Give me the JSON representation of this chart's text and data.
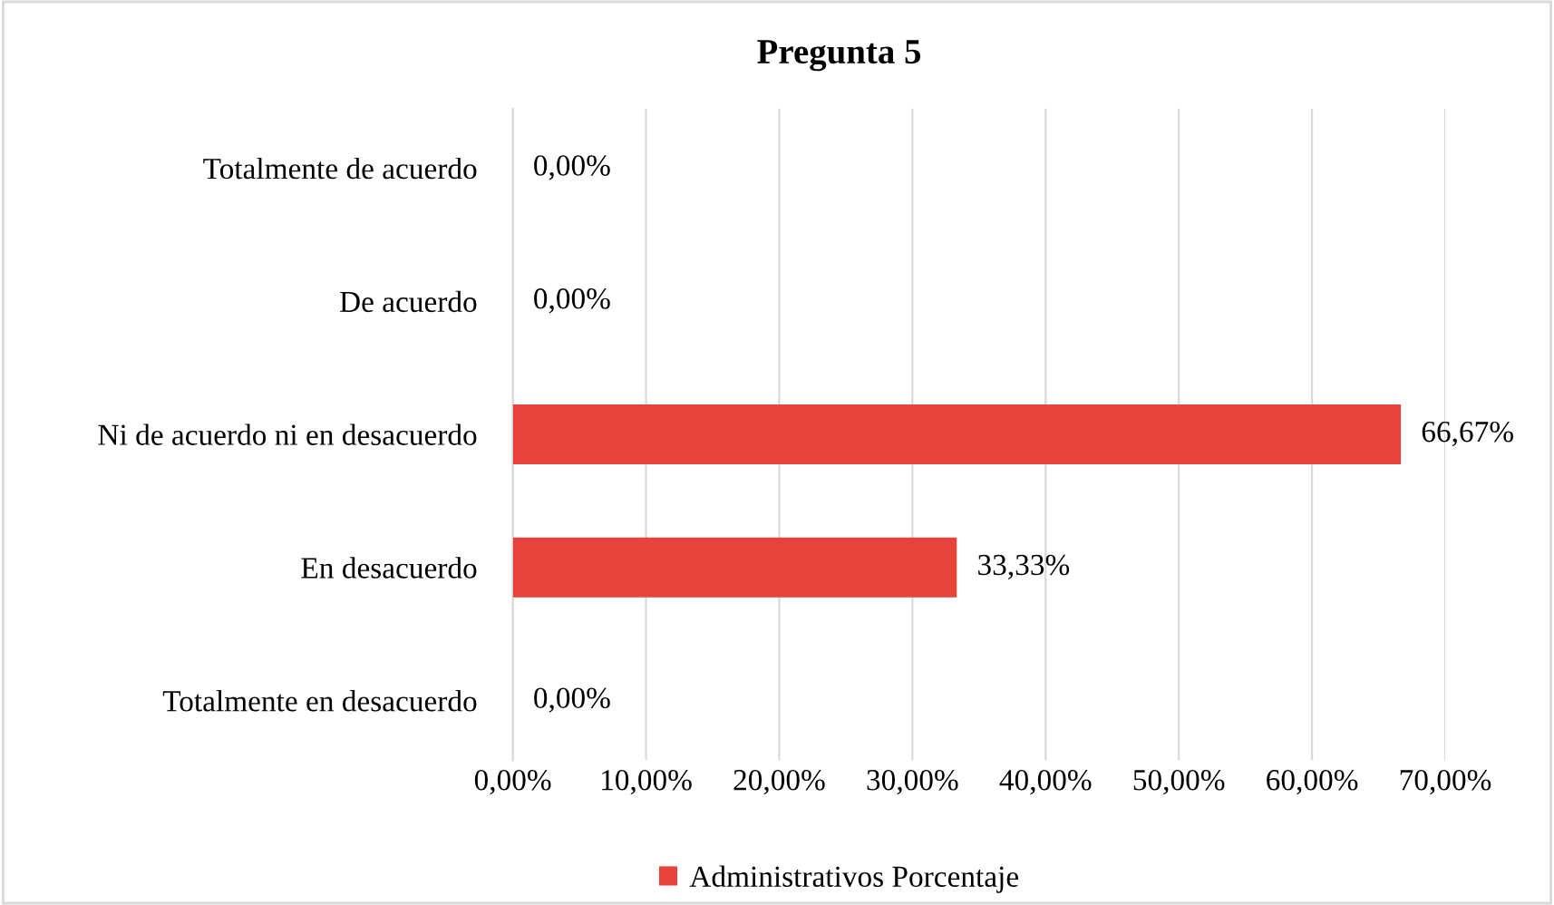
{
  "chart_data": {
    "type": "bar",
    "orientation": "horizontal",
    "title": "Pregunta 5",
    "categories": [
      "Totalmente de acuerdo",
      "De acuerdo",
      "Ni de acuerdo ni en desacuerdo",
      "En desacuerdo",
      "Totalmente en desacuerdo"
    ],
    "series": [
      {
        "name": "Administrativos Porcentaje",
        "color": "#e8433a",
        "values": [
          0,
          0,
          66.67,
          33.33,
          0
        ],
        "value_labels": [
          "0,00%",
          "0,00%",
          "66,67%",
          "33,33%",
          "0,00%"
        ]
      }
    ],
    "xlim": [
      0,
      70
    ],
    "xticks": [
      {
        "value": 0,
        "label": "0,00%"
      },
      {
        "value": 10,
        "label": "10,00%"
      },
      {
        "value": 20,
        "label": "20,00%"
      },
      {
        "value": 30,
        "label": "30,00%"
      },
      {
        "value": 40,
        "label": "40,00%"
      },
      {
        "value": 50,
        "label": "50,00%"
      },
      {
        "value": 60,
        "label": "60,00%"
      },
      {
        "value": 70,
        "label": "70,00%"
      }
    ],
    "grid": "x",
    "legend": "bottom"
  }
}
